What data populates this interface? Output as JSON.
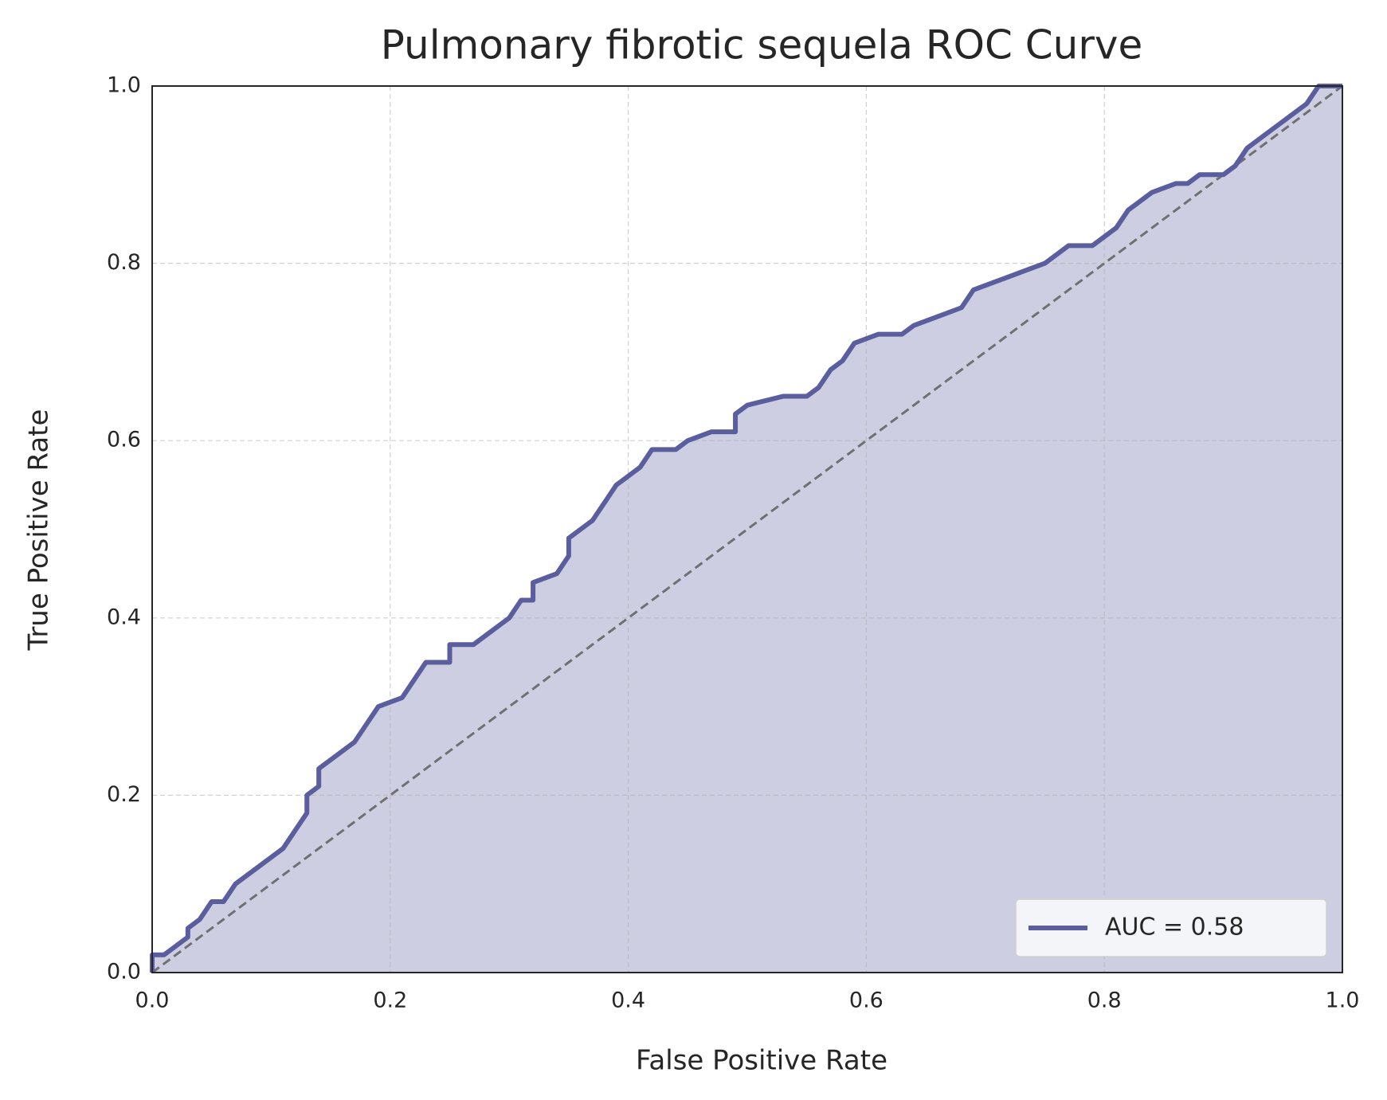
{
  "chart_data": {
    "type": "line",
    "title": "Pulmonary fibrotic sequela ROC Curve",
    "xlabel": "False Positive Rate",
    "ylabel": "True Positive Rate",
    "xlim": [
      0,
      1
    ],
    "ylim": [
      0,
      1
    ],
    "xticks": [
      {
        "value": 0,
        "label": "0.0"
      },
      0.2,
      0.4,
      0.6,
      0.8,
      {
        "value": 1,
        "label": "1.0"
      }
    ],
    "yticks": [
      {
        "value": 0,
        "label": "0.0"
      },
      0.2,
      0.4,
      0.6,
      0.8,
      {
        "value": 1,
        "label": "1.0"
      }
    ],
    "grid": true,
    "legend": "lower right",
    "fill": true,
    "series": [
      {
        "name": "AUC = 0.58",
        "color": "#5a5e9e",
        "x": [
          0,
          0,
          0.01,
          0.02,
          0.03,
          0.03,
          0.04,
          0.05,
          0.06,
          0.07,
          0.08,
          0.09,
          0.1,
          0.11,
          0.12,
          0.13,
          0.13,
          0.14,
          0.14,
          0.15,
          0.16,
          0.17,
          0.18,
          0.19,
          0.21,
          0.22,
          0.23,
          0.25,
          0.25,
          0.27,
          0.28,
          0.29,
          0.3,
          0.31,
          0.32,
          0.32,
          0.34,
          0.35,
          0.35,
          0.36,
          0.37,
          0.38,
          0.39,
          0.4,
          0.41,
          0.42,
          0.44,
          0.45,
          0.47,
          0.49,
          0.49,
          0.5,
          0.53,
          0.55,
          0.56,
          0.57,
          0.58,
          0.59,
          0.61,
          0.63,
          0.64,
          0.66,
          0.68,
          0.69,
          0.71,
          0.73,
          0.75,
          0.76,
          0.77,
          0.79,
          0.8,
          0.81,
          0.82,
          0.83,
          0.84,
          0.86,
          0.87,
          0.88,
          0.9,
          0.91,
          0.92,
          0.93,
          0.94,
          0.95,
          0.96,
          0.97,
          0.98,
          1.0
        ],
        "values": [
          0,
          0.02,
          0.02,
          0.03,
          0.04,
          0.05,
          0.06,
          0.08,
          0.08,
          0.1,
          0.11,
          0.12,
          0.13,
          0.14,
          0.16,
          0.18,
          0.2,
          0.21,
          0.23,
          0.24,
          0.25,
          0.26,
          0.28,
          0.3,
          0.31,
          0.33,
          0.35,
          0.35,
          0.37,
          0.37,
          0.38,
          0.39,
          0.4,
          0.42,
          0.42,
          0.44,
          0.45,
          0.47,
          0.49,
          0.5,
          0.51,
          0.53,
          0.55,
          0.56,
          0.57,
          0.59,
          0.59,
          0.6,
          0.61,
          0.61,
          0.63,
          0.64,
          0.65,
          0.65,
          0.66,
          0.68,
          0.69,
          0.71,
          0.72,
          0.72,
          0.73,
          0.74,
          0.75,
          0.77,
          0.78,
          0.79,
          0.8,
          0.81,
          0.82,
          0.82,
          0.83,
          0.84,
          0.86,
          0.87,
          0.88,
          0.89,
          0.89,
          0.9,
          0.9,
          0.91,
          0.93,
          0.94,
          0.95,
          0.96,
          0.97,
          0.98,
          1.0,
          1.0
        ]
      }
    ]
  }
}
